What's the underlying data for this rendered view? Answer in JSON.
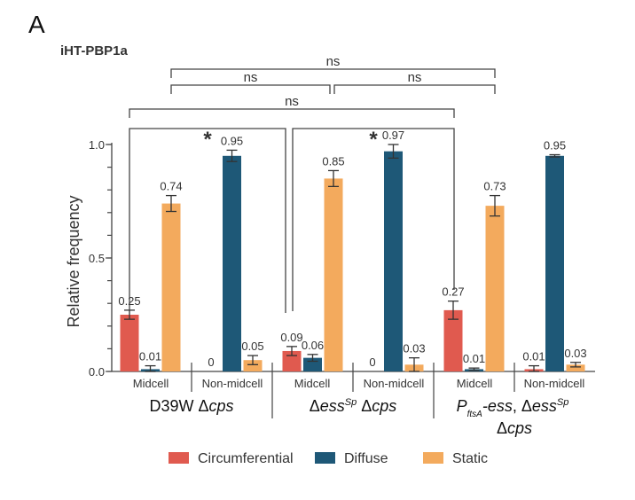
{
  "panel_letter": "A",
  "chart_data": {
    "type": "bar",
    "title": "iHT-PBP1a",
    "xlabel": "",
    "ylabel": "Relative frequency",
    "ylim": [
      0.0,
      1.0
    ],
    "yticks": [
      0.0,
      0.5,
      1.0
    ],
    "ytick_labels": [
      "0.0",
      "0.5",
      "1.0"
    ],
    "minor_tick_step": 0.1,
    "grid": false,
    "legend_position": "bottom",
    "colors": {
      "Circumferential": "#e05a4f",
      "Diffuse": "#1e5877",
      "Static": "#f3aa5d"
    },
    "series_names": [
      "Circumferential",
      "Diffuse",
      "Static"
    ],
    "groups": [
      {
        "strain_label": [
          {
            "text": "D39W ",
            "italic": false
          },
          {
            "text": "Δ",
            "italic": false
          },
          {
            "text": "cps",
            "italic": true
          }
        ],
        "categories": [
          {
            "name": "Midcell",
            "values": [
              0.25,
              0.01,
              0.74
            ],
            "value_labels": [
              "0.25",
              "0.01",
              "0.74"
            ],
            "errors": [
              0.02,
              0.015,
              0.035
            ]
          },
          {
            "name": "Non-midcell",
            "values": [
              0.0,
              0.95,
              0.05
            ],
            "value_labels": [
              "0",
              "0.95",
              "0.05"
            ],
            "errors": [
              0,
              0.025,
              0.02
            ]
          }
        ]
      },
      {
        "strain_label": [
          {
            "text": "Δ",
            "italic": false
          },
          {
            "text": "ess",
            "italic": true
          },
          {
            "text": "Sp",
            "italic": true,
            "sup": true
          },
          {
            "text": " Δ",
            "italic": false
          },
          {
            "text": "cps",
            "italic": true
          }
        ],
        "categories": [
          {
            "name": "Midcell",
            "values": [
              0.09,
              0.06,
              0.85
            ],
            "value_labels": [
              "0.09",
              "0.06",
              "0.85"
            ],
            "errors": [
              0.02,
              0.015,
              0.035
            ]
          },
          {
            "name": "Non-midcell",
            "values": [
              0.0,
              0.97,
              0.03
            ],
            "value_labels": [
              "0",
              "0.97",
              "0.03"
            ],
            "errors": [
              0,
              0.03,
              0.03
            ]
          }
        ]
      },
      {
        "strain_label_line1": [
          {
            "text": "P",
            "italic": true
          },
          {
            "text": "ftsA",
            "italic": true,
            "sub": true
          },
          {
            "text": "-ess",
            "italic": true
          },
          {
            "text": ", Δ",
            "italic": false
          },
          {
            "text": "ess",
            "italic": true
          },
          {
            "text": "Sp",
            "italic": true,
            "sup": true
          }
        ],
        "strain_label_line2": [
          {
            "text": "Δ",
            "italic": false
          },
          {
            "text": "cps",
            "italic": true
          }
        ],
        "categories": [
          {
            "name": "Midcell",
            "values": [
              0.27,
              0.01,
              0.73
            ],
            "value_labels": [
              "0.27",
              "0.01",
              "0.73"
            ],
            "errors": [
              0.04,
              0.005,
              0.045
            ]
          },
          {
            "name": "Non-midcell",
            "values": [
              0.01,
              0.95,
              0.03
            ],
            "value_labels": [
              "0.01",
              "0.95",
              "0.03"
            ],
            "errors": [
              0.015,
              0.005,
              0.01
            ]
          }
        ]
      }
    ],
    "significance": [
      {
        "from": "group1-midcell-circumferential",
        "to": "group2-midcell-circumferential",
        "label": "*"
      },
      {
        "from": "group2-midcell-circumferential",
        "to": "group3-midcell-circumferential",
        "label": "*"
      },
      {
        "from": "group1-midcell-circumferential",
        "to": "group3-midcell-circumferential",
        "label": "ns"
      },
      {
        "from": "group1-midcell-static",
        "to": "group2-midcell-static",
        "label": "ns"
      },
      {
        "from": "group2-midcell-static",
        "to": "group3-midcell-static",
        "label": "ns"
      },
      {
        "from": "group1-midcell-static",
        "to": "group3-midcell-static",
        "label": "ns"
      }
    ]
  }
}
